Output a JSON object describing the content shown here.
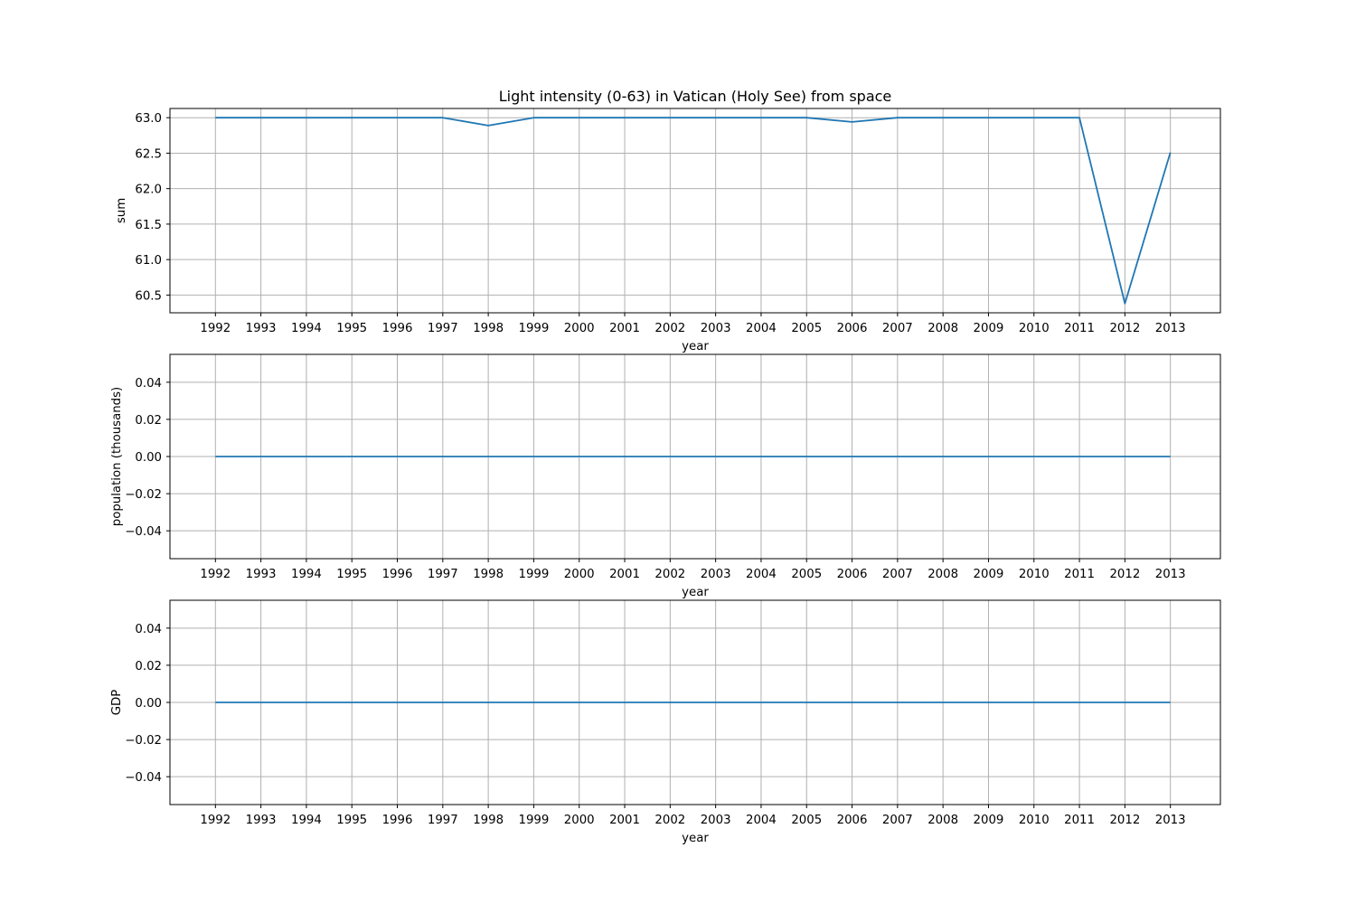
{
  "figure": {
    "title": "Light intensity (0-63) in Vatican (Holy See) from space",
    "line_color": "#1f77b4",
    "grid_color": "#b0b0b0"
  },
  "chart_data": [
    {
      "type": "line",
      "title": "Light intensity (0-63) in Vatican (Holy See) from space",
      "xlabel": "year",
      "ylabel": "sum",
      "grid": true,
      "x": [
        1992,
        1993,
        1994,
        1995,
        1996,
        1997,
        1998,
        1999,
        2000,
        2001,
        2002,
        2003,
        2004,
        2005,
        2006,
        2007,
        2008,
        2009,
        2010,
        2011,
        2012,
        2013
      ],
      "xtick_labels": [
        "1992",
        "1993",
        "1994",
        "1995",
        "1996",
        "1997",
        "1998",
        "1999",
        "2000",
        "2001",
        "2002",
        "2003",
        "2004",
        "2005",
        "2006",
        "2007",
        "2008",
        "2009",
        "2010",
        "2011",
        "2012",
        "2013"
      ],
      "values": [
        63.0,
        63.0,
        63.0,
        63.0,
        63.0,
        63.0,
        62.89,
        63.0,
        63.0,
        63.0,
        63.0,
        63.0,
        63.0,
        63.0,
        62.94,
        63.0,
        63.0,
        63.0,
        63.0,
        63.0,
        60.38,
        62.51
      ],
      "yticks": [
        60.5,
        61.0,
        61.5,
        62.0,
        62.5,
        63.0
      ],
      "ytick_labels": [
        "60.5",
        "61.0",
        "61.5",
        "62.0",
        "62.5",
        "63.0"
      ],
      "ylim": [
        60.25,
        63.13
      ],
      "xlim": [
        1991,
        2014.1
      ]
    },
    {
      "type": "line",
      "xlabel": "year",
      "ylabel": "population (thousands)",
      "grid": true,
      "x": [
        1992,
        1993,
        1994,
        1995,
        1996,
        1997,
        1998,
        1999,
        2000,
        2001,
        2002,
        2003,
        2004,
        2005,
        2006,
        2007,
        2008,
        2009,
        2010,
        2011,
        2012,
        2013
      ],
      "xtick_labels": [
        "1992",
        "1993",
        "1994",
        "1995",
        "1996",
        "1997",
        "1998",
        "1999",
        "2000",
        "2001",
        "2002",
        "2003",
        "2004",
        "2005",
        "2006",
        "2007",
        "2008",
        "2009",
        "2010",
        "2011",
        "2012",
        "2013"
      ],
      "values": [
        0,
        0,
        0,
        0,
        0,
        0,
        0,
        0,
        0,
        0,
        0,
        0,
        0,
        0,
        0,
        0,
        0,
        0,
        0,
        0,
        0,
        0
      ],
      "yticks": [
        -0.04,
        -0.02,
        0.0,
        0.02,
        0.04
      ],
      "ytick_labels": [
        "−0.04",
        "−0.02",
        "0.00",
        "0.02",
        "0.04"
      ],
      "ylim": [
        -0.055,
        0.055
      ],
      "xlim": [
        1991,
        2014.1
      ]
    },
    {
      "type": "line",
      "xlabel": "year",
      "ylabel": "GDP",
      "grid": true,
      "x": [
        1992,
        1993,
        1994,
        1995,
        1996,
        1997,
        1998,
        1999,
        2000,
        2001,
        2002,
        2003,
        2004,
        2005,
        2006,
        2007,
        2008,
        2009,
        2010,
        2011,
        2012,
        2013
      ],
      "xtick_labels": [
        "1992",
        "1993",
        "1994",
        "1995",
        "1996",
        "1997",
        "1998",
        "1999",
        "2000",
        "2001",
        "2002",
        "2003",
        "2004",
        "2005",
        "2006",
        "2007",
        "2008",
        "2009",
        "2010",
        "2011",
        "2012",
        "2013"
      ],
      "values": [
        0,
        0,
        0,
        0,
        0,
        0,
        0,
        0,
        0,
        0,
        0,
        0,
        0,
        0,
        0,
        0,
        0,
        0,
        0,
        0,
        0,
        0
      ],
      "yticks": [
        -0.04,
        -0.02,
        0.0,
        0.02,
        0.04
      ],
      "ytick_labels": [
        "−0.04",
        "−0.02",
        "0.00",
        "0.02",
        "0.04"
      ],
      "ylim": [
        -0.055,
        0.055
      ],
      "xlim": [
        1991,
        2014.1
      ]
    }
  ]
}
